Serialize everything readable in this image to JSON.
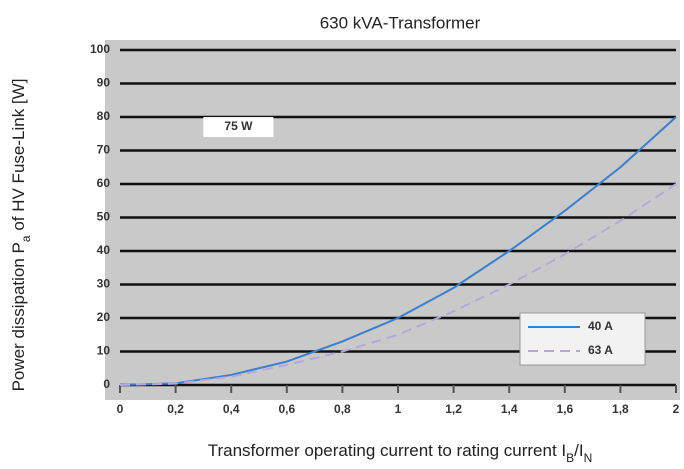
{
  "chart_data": {
    "type": "line",
    "title": "630 kVA-Transformer",
    "x_label": [
      "Transformer operating current to rating current I",
      "B",
      "/I",
      "N"
    ],
    "y_label": [
      "Power dissipation P",
      "a",
      " of HV Fuse-Link [W]"
    ],
    "annotation": "75 W",
    "x": [
      0,
      0.2,
      0.4,
      0.6,
      0.8,
      1.0,
      1.2,
      1.4,
      1.6,
      1.8,
      2.0
    ],
    "series": [
      {
        "name": "40 A",
        "color": "#3a7fd0",
        "dash": false,
        "values": [
          0,
          0.5,
          3,
          7,
          13,
          20,
          29,
          40,
          52,
          65,
          80
        ]
      },
      {
        "name": "63 A",
        "color": "#b6a8dc",
        "dash": true,
        "values": [
          0,
          0.4,
          2.5,
          6,
          10,
          15,
          22,
          30,
          39,
          49,
          60
        ]
      }
    ],
    "xlim": [
      0,
      2
    ],
    "xticks": [
      0,
      {
        "value": 0.2,
        "label": "0,2"
      },
      {
        "value": 0.4,
        "label": "0,4"
      },
      {
        "value": 0.6,
        "label": "0,6"
      },
      {
        "value": 0.8,
        "label": "0,8"
      },
      1,
      {
        "value": 1.2,
        "label": "1,2"
      },
      {
        "value": 1.4,
        "label": "1,4"
      },
      {
        "value": 1.6,
        "label": "1,6"
      },
      {
        "value": 1.8,
        "label": "1,8"
      },
      2
    ],
    "ylim": [
      0,
      100
    ],
    "yticks": [
      0,
      10,
      20,
      30,
      40,
      50,
      60,
      70,
      80,
      90,
      100
    ],
    "grid": true,
    "legend": "lower right"
  }
}
